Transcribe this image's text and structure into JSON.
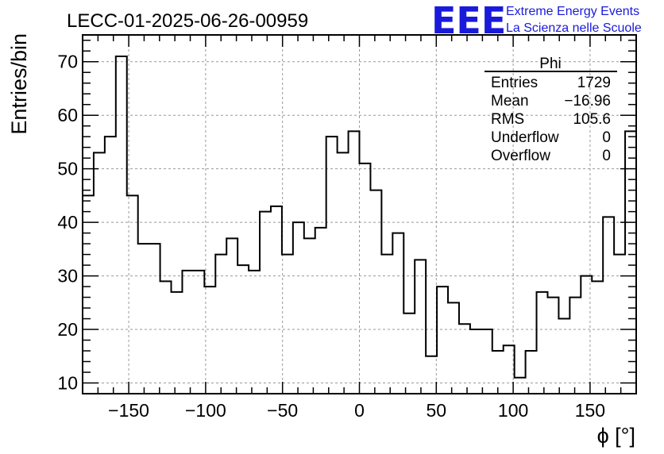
{
  "header": {
    "title": "LECC-01-2025-06-26-00959",
    "logo_mark": "EEE",
    "logo_line1": "Extreme Energy Events",
    "logo_line2": "La Scienza nelle Scuole",
    "brand_color": "#1a1adb"
  },
  "chart_data": {
    "type": "bar",
    "style": "step-histogram",
    "xlabel": "ϕ [°]",
    "ylabel": "Entries/bin",
    "xlim": [
      -180,
      180
    ],
    "ylim": [
      8,
      75
    ],
    "grid": true,
    "bin_width": 7.2,
    "x_ticks": [
      -150,
      -100,
      -50,
      0,
      50,
      100,
      150
    ],
    "x_tick_labels": [
      "−150",
      "−100",
      "−50",
      "0",
      "50",
      "100",
      "150"
    ],
    "y_ticks": [
      10,
      20,
      30,
      40,
      50,
      60,
      70
    ],
    "y_tick_labels": [
      "10",
      "20",
      "30",
      "40",
      "50",
      "60",
      "70"
    ],
    "values": [
      45,
      53,
      56,
      71,
      45,
      36,
      36,
      29,
      27,
      31,
      31,
      28,
      34,
      37,
      32,
      31,
      42,
      43,
      34,
      40,
      37,
      39,
      56,
      53,
      57,
      51,
      46,
      34,
      38,
      23,
      33,
      15,
      28,
      25,
      21,
      20,
      20,
      16,
      17,
      11,
      16,
      27,
      26,
      22,
      26,
      30,
      29,
      41,
      34,
      57
    ],
    "stats_box": {
      "title": "Phi",
      "position": "top-right",
      "rows": [
        {
          "label": "Entries",
          "value": "1729"
        },
        {
          "label": "Mean",
          "value": "−16.96"
        },
        {
          "label": "RMS",
          "value": "105.6"
        },
        {
          "label": "Underflow",
          "value": "0"
        },
        {
          "label": "Overflow",
          "value": "0"
        }
      ]
    }
  }
}
